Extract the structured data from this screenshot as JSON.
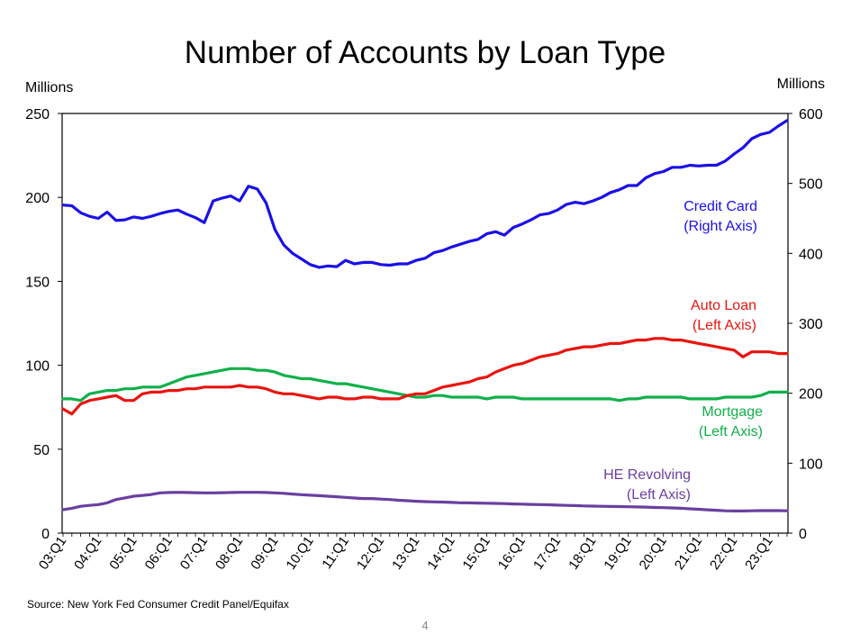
{
  "chart_data": {
    "type": "line",
    "title": "Number of Accounts by Loan Type",
    "ylabel_left": "Millions",
    "ylabel_right": "Millions",
    "ylim_left": [
      0,
      250
    ],
    "ylim_right": [
      0,
      600
    ],
    "yticks_left": [
      0,
      50,
      100,
      150,
      200,
      250
    ],
    "yticks_right": [
      0,
      100,
      200,
      300,
      400,
      500,
      600
    ],
    "x_ticks": [
      "03:Q1",
      "04:Q1",
      "05:Q1",
      "06:Q1",
      "07:Q1",
      "08:Q1",
      "09:Q1",
      "10:Q1",
      "11:Q1",
      "12:Q1",
      "13:Q1",
      "14:Q1",
      "15:Q1",
      "16:Q1",
      "17:Q1",
      "18:Q1",
      "19:Q1",
      "20:Q1",
      "21:Q1",
      "22:Q1",
      "23:Q1"
    ],
    "x_start_year": 2003,
    "n_quarters": 83,
    "grid": false,
    "series": [
      {
        "name": "Credit Card",
        "label_lines": [
          "Credit Card",
          "(Right Axis)"
        ],
        "axis": "right",
        "color": "#1a10e6",
        "values": [
          469,
          468,
          458,
          453,
          450,
          459,
          447,
          448,
          452,
          450,
          453,
          457,
          460,
          462,
          456,
          451,
          444,
          475,
          479,
          482,
          475,
          496,
          492,
          472,
          434,
          412,
          400,
          392,
          384,
          380,
          382,
          381,
          390,
          385,
          387,
          387,
          384,
          383,
          385,
          385,
          390,
          393,
          401,
          404,
          409,
          413,
          417,
          420,
          428,
          431,
          426,
          437,
          442,
          448,
          455,
          457,
          462,
          470,
          473,
          471,
          475,
          480,
          487,
          491,
          497,
          497,
          508,
          514,
          517,
          523,
          523,
          526,
          525,
          526,
          526,
          532,
          542,
          551,
          564,
          570,
          573,
          582,
          590
        ]
      },
      {
        "name": "Auto Loan",
        "label_lines": [
          "Auto Loan",
          "(Left Axis)"
        ],
        "axis": "left",
        "color": "#e8150f",
        "values": [
          74,
          71,
          77,
          79,
          80,
          81,
          82,
          79,
          79,
          83,
          84,
          84,
          85,
          85,
          86,
          86,
          87,
          87,
          87,
          87,
          88,
          87,
          87,
          86,
          84,
          83,
          83,
          82,
          81,
          80,
          81,
          81,
          80,
          80,
          81,
          81,
          80,
          80,
          80,
          82,
          83,
          83,
          85,
          87,
          88,
          89,
          90,
          92,
          93,
          96,
          98,
          100,
          101,
          103,
          105,
          106,
          107,
          109,
          110,
          111,
          111,
          112,
          113,
          113,
          114,
          115,
          115,
          116,
          116,
          115,
          115,
          114,
          113,
          112,
          111,
          110,
          109,
          105,
          108,
          108,
          108,
          107,
          107
        ]
      },
      {
        "name": "Mortgage",
        "label_lines": [
          "Mortgage",
          "(Left Axis)"
        ],
        "axis": "left",
        "color": "#10b04a",
        "values": [
          80,
          80,
          79,
          83,
          84,
          85,
          85,
          86,
          86,
          87,
          87,
          87,
          89,
          91,
          93,
          94,
          95,
          96,
          97,
          98,
          98,
          98,
          97,
          97,
          96,
          94,
          93,
          92,
          92,
          91,
          90,
          89,
          89,
          88,
          87,
          86,
          85,
          84,
          83,
          82,
          81,
          81,
          82,
          82,
          81,
          81,
          81,
          81,
          80,
          81,
          81,
          81,
          80,
          80,
          80,
          80,
          80,
          80,
          80,
          80,
          80,
          80,
          80,
          79,
          80,
          80,
          81,
          81,
          81,
          81,
          81,
          80,
          80,
          80,
          80,
          81,
          81,
          81,
          81,
          82,
          84,
          84,
          84
        ]
      },
      {
        "name": "HE Revolving",
        "label_lines": [
          "HE Revolving",
          "(Left Axis)"
        ],
        "axis": "left",
        "color": "#6b3fa0",
        "values": [
          14,
          14.8,
          16,
          16.5,
          17,
          18,
          20,
          21,
          22,
          22.5,
          23,
          24,
          24.2,
          24.3,
          24.2,
          24.1,
          24,
          24,
          24.1,
          24.2,
          24.3,
          24.3,
          24.3,
          24.2,
          24,
          23.7,
          23.3,
          22.9,
          22.6,
          22.3,
          22,
          21.7,
          21.3,
          20.9,
          20.6,
          20.6,
          20.3,
          20,
          19.6,
          19.3,
          19,
          18.8,
          18.6,
          18.5,
          18.3,
          18.1,
          18,
          17.9,
          17.8,
          17.7,
          17.6,
          17.4,
          17.3,
          17.1,
          17,
          16.9,
          16.7,
          16.5,
          16.4,
          16.2,
          16.1,
          16,
          15.9,
          15.8,
          15.7,
          15.6,
          15.5,
          15.3,
          15.2,
          15,
          14.8,
          14.5,
          14.2,
          13.9,
          13.6,
          13.3,
          13.2,
          13.2,
          13.3,
          13.4,
          13.4,
          13.4,
          13.3
        ]
      }
    ],
    "source": "Source: New York Fed Consumer Credit Panel/Equifax",
    "page_number": "4"
  }
}
